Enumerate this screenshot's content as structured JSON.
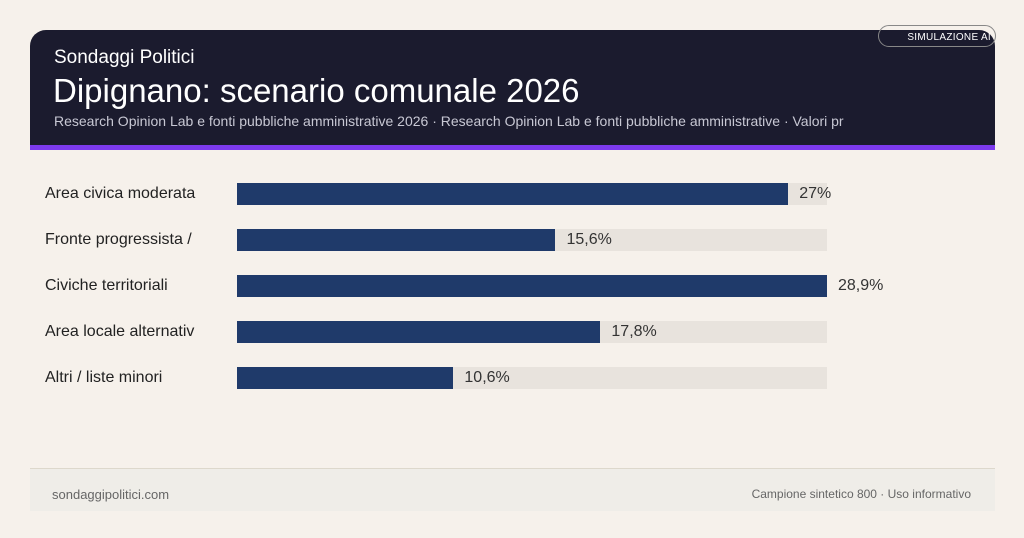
{
  "header": {
    "brand": "Sondaggi Politici",
    "title": "Dipignano: scenario comunale 2026",
    "subtitle": "Research Opinion Lab e fonti pubbliche amministrative 2026 · Research Opinion Lab e fonti pubbliche amministrative · Valori pr",
    "badge": "SIMULAZIONE AI"
  },
  "colors": {
    "bar": "#1f3a6a",
    "track": "#e8e3dd",
    "accent": "#7c3aed",
    "header_bg": "#1b1b2e"
  },
  "chart_data": {
    "type": "bar",
    "orientation": "horizontal",
    "categories": [
      "Area civica moderata",
      "Fronte progressista /",
      "Civiche territoriali",
      "Area locale alternativ",
      "Altri / liste minori"
    ],
    "values": [
      27,
      15.6,
      28.9,
      17.8,
      10.6
    ],
    "value_labels": [
      "27%",
      "15,6%",
      "28,9%",
      "17,8%",
      "10,6%"
    ],
    "xlim": [
      0,
      28.9
    ],
    "grid": false,
    "legend": "none"
  },
  "footer": {
    "left": "sondaggipolitici.com",
    "right": "Campione sintetico 800 · Uso informativo"
  }
}
